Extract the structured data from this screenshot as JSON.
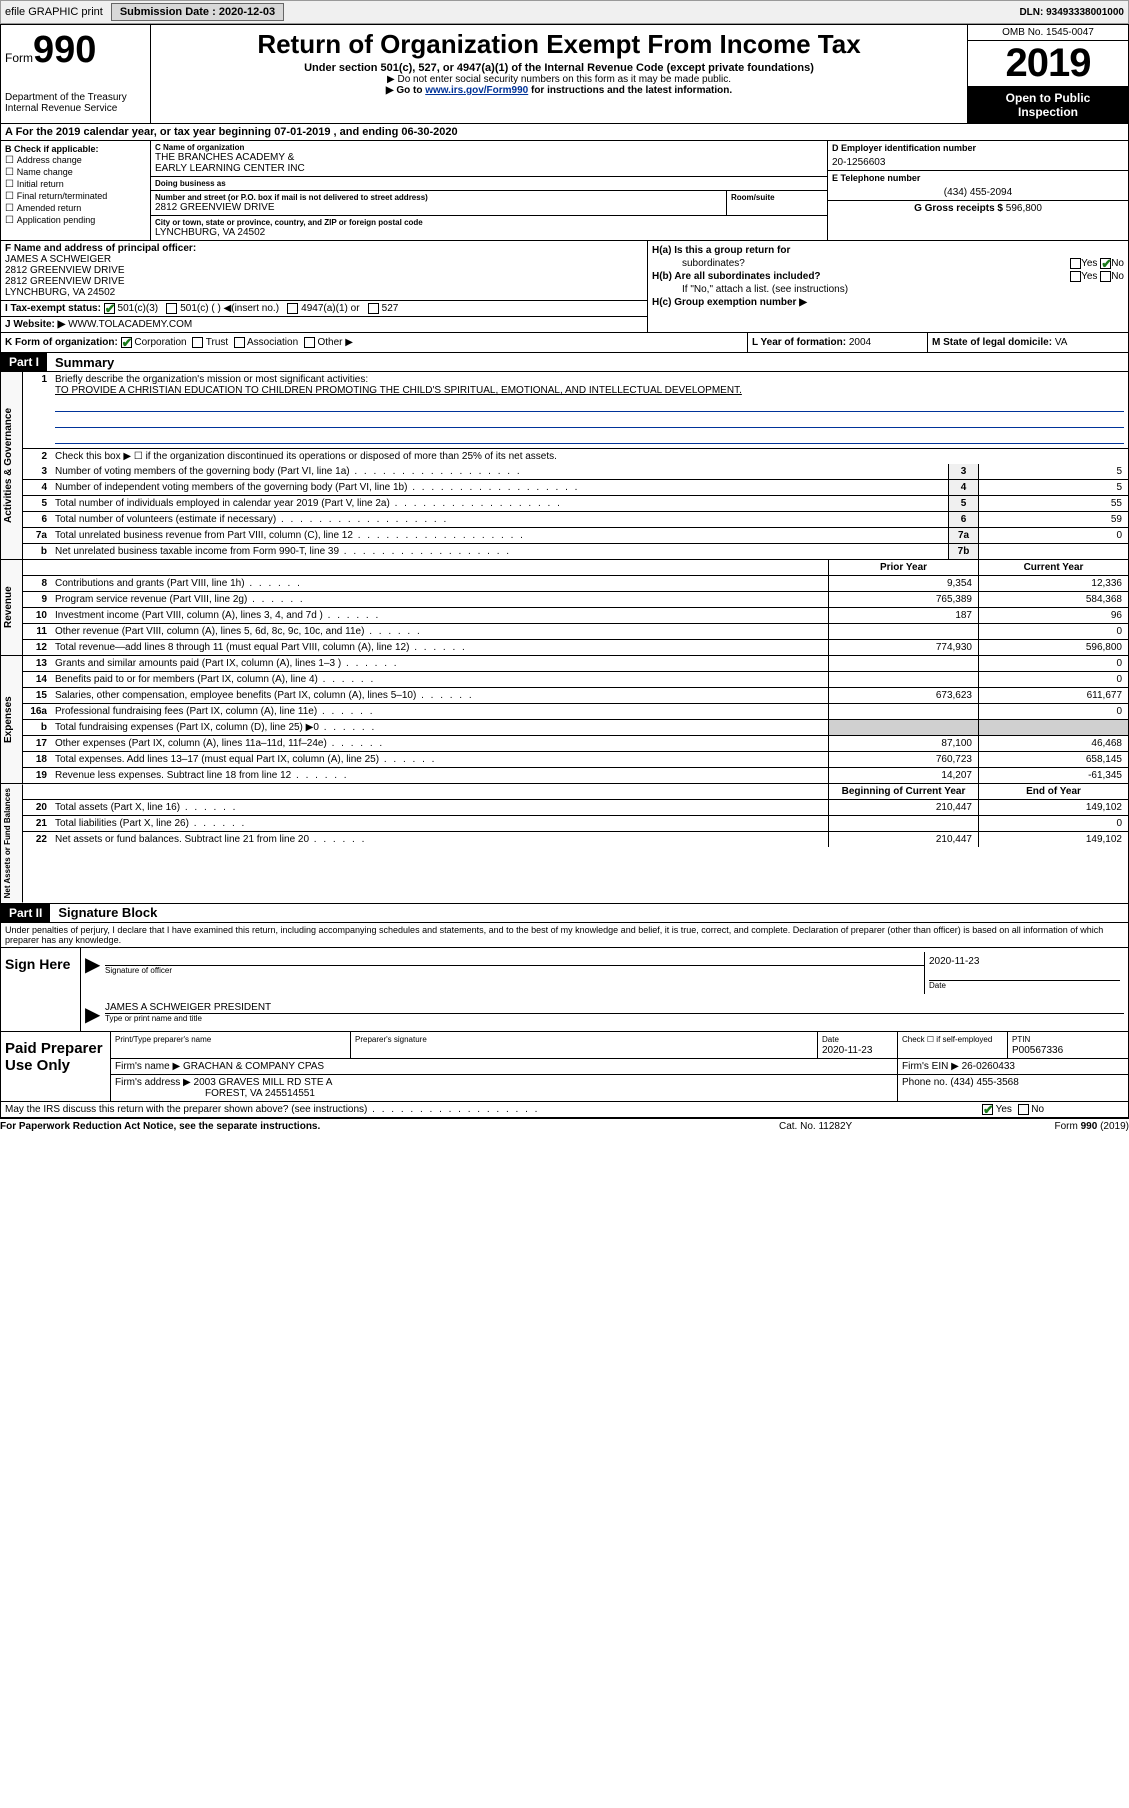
{
  "topbar": {
    "efile": "efile GRAPHIC print",
    "sub_label": "Submission Date :",
    "sub_date": "2020-12-03",
    "dln_label": "DLN:",
    "dln": "93493338001000"
  },
  "head": {
    "form_word": "Form",
    "form_num": "990",
    "dept1": "Department of the Treasury",
    "dept2": "Internal Revenue Service",
    "title": "Return of Organization Exempt From Income Tax",
    "sub1": "Under section 501(c), 527, or 4947(a)(1) of the Internal Revenue Code (except private foundations)",
    "sub2": "▶ Do not enter social security numbers on this form as it may be made public.",
    "sub3_pre": "▶ Go to ",
    "sub3_link": "www.irs.gov/Form990",
    "sub3_post": " for instructions and the latest information.",
    "omb": "OMB No. 1545-0047",
    "year": "2019",
    "open1": "Open to Public",
    "open2": "Inspection"
  },
  "rowA": {
    "text": "A For the 2019 calendar year, or tax year beginning 07-01-2019     , and ending 06-30-2020"
  },
  "boxB": {
    "header": "B Check if applicable:",
    "items": [
      "Address change",
      "Name change",
      "Initial return",
      "Final return/terminated",
      "Amended return",
      "Application pending"
    ]
  },
  "boxC": {
    "name_lbl": "C Name of organization",
    "name1": "THE BRANCHES ACADEMY &",
    "name2": "EARLY LEARNING CENTER INC",
    "dba_lbl": "Doing business as",
    "dba": "",
    "addr_lbl": "Number and street (or P.O. box if mail is not delivered to street address)",
    "addr": "2812 GREENVIEW DRIVE",
    "suite_lbl": "Room/suite",
    "city_lbl": "City or town, state or province, country, and ZIP or foreign postal code",
    "city": "LYNCHBURG, VA  24502"
  },
  "boxD": {
    "lbl": "D Employer identification number",
    "val": "20-1256603"
  },
  "boxE": {
    "lbl": "E Telephone number",
    "val": "(434) 455-2094"
  },
  "boxG": {
    "lbl": "G Gross receipts $",
    "val": "596,800"
  },
  "boxF": {
    "lbl": "F  Name and address of principal officer:",
    "line1": "JAMES A SCHWEIGER",
    "line2": "2812 GREENVIEW DRIVE",
    "line3": "2812 GREENVIEW DRIVE",
    "line4": "LYNCHBURG, VA  24502"
  },
  "boxH": {
    "a_lbl": "H(a)  Is this a group return for",
    "a_lbl2": "subordinates?",
    "b_lbl": "H(b)  Are all subordinates included?",
    "b_note": "If \"No,\" attach a list. (see instructions)",
    "c_lbl": "H(c)  Group exemption number ▶",
    "yes": "Yes",
    "no": "No"
  },
  "boxI": {
    "lbl": "I    Tax-exempt status:",
    "opt1": "501(c)(3)",
    "opt2": "501(c) (  ) ◀(insert no.)",
    "opt3": "4947(a)(1) or",
    "opt4": "527"
  },
  "boxJ": {
    "lbl": "J   Website: ▶",
    "val": "WWW.TOLACADEMY.COM"
  },
  "boxK": {
    "lbl": "K Form of organization:",
    "opts": [
      "Corporation",
      "Trust",
      "Association",
      "Other ▶"
    ]
  },
  "boxL": {
    "lbl": "L Year of formation:",
    "val": "2004"
  },
  "boxM": {
    "lbl": "M State of legal domicile:",
    "val": "VA"
  },
  "part1": {
    "hdr": "Part I",
    "title": "Summary",
    "q1_lbl": "Briefly describe the organization's mission or most significant activities:",
    "q1_val": "TO PROVIDE A CHRISTIAN EDUCATION TO CHILDREN PROMOTING THE CHILD'S SPIRITUAL, EMOTIONAL, AND INTELLECTUAL DEVELOPMENT.",
    "q2": "Check this box ▶ ☐  if the organization discontinued its operations or disposed of more than 25% of its net assets.",
    "rows_gov": [
      {
        "n": "3",
        "lbl": "Number of voting members of the governing body (Part VI, line 1a)",
        "box": "3",
        "v": "5"
      },
      {
        "n": "4",
        "lbl": "Number of independent voting members of the governing body (Part VI, line 1b)",
        "box": "4",
        "v": "5"
      },
      {
        "n": "5",
        "lbl": "Total number of individuals employed in calendar year 2019 (Part V, line 2a)",
        "box": "5",
        "v": "55"
      },
      {
        "n": "6",
        "lbl": "Total number of volunteers (estimate if necessary)",
        "box": "6",
        "v": "59"
      },
      {
        "n": "7a",
        "lbl": "Total unrelated business revenue from Part VIII, column (C), line 12",
        "box": "7a",
        "v": "0"
      },
      {
        "n": "b",
        "lbl": "Net unrelated business taxable income from Form 990-T, line 39",
        "box": "7b",
        "v": ""
      }
    ],
    "hdr_prior": "Prior Year",
    "hdr_curr": "Current Year",
    "rows_rev": [
      {
        "n": "8",
        "lbl": "Contributions and grants (Part VIII, line 1h)",
        "p": "9,354",
        "c": "12,336"
      },
      {
        "n": "9",
        "lbl": "Program service revenue (Part VIII, line 2g)",
        "p": "765,389",
        "c": "584,368"
      },
      {
        "n": "10",
        "lbl": "Investment income (Part VIII, column (A), lines 3, 4, and 7d )",
        "p": "187",
        "c": "96"
      },
      {
        "n": "11",
        "lbl": "Other revenue (Part VIII, column (A), lines 5, 6d, 8c, 9c, 10c, and 11e)",
        "p": "",
        "c": "0"
      },
      {
        "n": "12",
        "lbl": "Total revenue—add lines 8 through 11 (must equal Part VIII, column (A), line 12)",
        "p": "774,930",
        "c": "596,800"
      }
    ],
    "rows_exp": [
      {
        "n": "13",
        "lbl": "Grants and similar amounts paid (Part IX, column (A), lines 1–3 )",
        "p": "",
        "c": "0"
      },
      {
        "n": "14",
        "lbl": "Benefits paid to or for members (Part IX, column (A), line 4)",
        "p": "",
        "c": "0"
      },
      {
        "n": "15",
        "lbl": "Salaries, other compensation, employee benefits (Part IX, column (A), lines 5–10)",
        "p": "673,623",
        "c": "611,677"
      },
      {
        "n": "16a",
        "lbl": "Professional fundraising fees (Part IX, column (A), line 11e)",
        "p": "",
        "c": "0"
      },
      {
        "n": "b",
        "lbl": "Total fundraising expenses (Part IX, column (D), line 25) ▶0",
        "p": "SHADE",
        "c": "SHADE"
      },
      {
        "n": "17",
        "lbl": "Other expenses (Part IX, column (A), lines 11a–11d, 11f–24e)",
        "p": "87,100",
        "c": "46,468"
      },
      {
        "n": "18",
        "lbl": "Total expenses. Add lines 13–17 (must equal Part IX, column (A), line 25)",
        "p": "760,723",
        "c": "658,145"
      },
      {
        "n": "19",
        "lbl": "Revenue less expenses. Subtract line 18 from line 12",
        "p": "14,207",
        "c": "-61,345"
      }
    ],
    "hdr_beg": "Beginning of Current Year",
    "hdr_end": "End of Year",
    "rows_net": [
      {
        "n": "20",
        "lbl": "Total assets (Part X, line 16)",
        "p": "210,447",
        "c": "149,102"
      },
      {
        "n": "21",
        "lbl": "Total liabilities (Part X, line 26)",
        "p": "",
        "c": "0"
      },
      {
        "n": "22",
        "lbl": "Net assets or fund balances. Subtract line 21 from line 20",
        "p": "210,447",
        "c": "149,102"
      }
    ],
    "vtab_gov": "Activities & Governance",
    "vtab_rev": "Revenue",
    "vtab_exp": "Expenses",
    "vtab_net": "Net Assets or Fund Balances"
  },
  "part2": {
    "hdr": "Part II",
    "title": "Signature Block",
    "decl": "Under penalties of perjury, I declare that I have examined this return, including accompanying schedules and statements, and to the best of my knowledge and belief, it is true, correct, and complete. Declaration of preparer (other than officer) is based on all information of which preparer has any knowledge.",
    "sign_here": "Sign Here",
    "sig_lbl": "Signature of officer",
    "date_lbl": "Date",
    "date_val": "2020-11-23",
    "name_val": "JAMES A SCHWEIGER  PRESIDENT",
    "name_lbl": "Type or print name and title",
    "paid": "Paid Preparer Use Only",
    "p_name_lbl": "Print/Type preparer's name",
    "p_sig_lbl": "Preparer's signature",
    "p_date_lbl": "Date",
    "p_date": "2020-11-23",
    "p_check_lbl": "Check ☐ if self-employed",
    "p_ptin_lbl": "PTIN",
    "p_ptin": "P00567336",
    "firm_name_lbl": "Firm's name     ▶",
    "firm_name": "GRACHAN & COMPANY CPAS",
    "firm_ein_lbl": "Firm's EIN ▶",
    "firm_ein": "26-0260433",
    "firm_addr_lbl": "Firm's address ▶",
    "firm_addr1": "2003 GRAVES MILL RD STE A",
    "firm_addr2": "FOREST, VA  245514551",
    "phone_lbl": "Phone no.",
    "phone": "(434) 455-3568",
    "discuss": "May the IRS discuss this return with the preparer shown above? (see instructions)",
    "yes": "Yes",
    "no": "No"
  },
  "footer": {
    "left": "For Paperwork Reduction Act Notice, see the separate instructions.",
    "mid": "Cat. No. 11282Y",
    "right": "Form 990 (2019)"
  }
}
